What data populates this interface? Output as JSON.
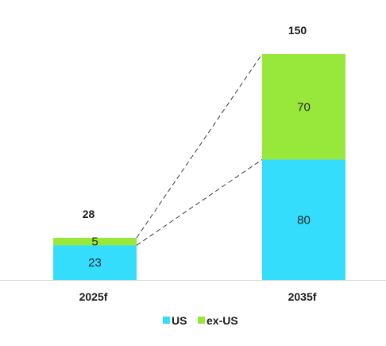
{
  "chart_data": {
    "type": "bar",
    "stacked": true,
    "categories": [
      "2025f",
      "2035f"
    ],
    "series": [
      {
        "name": "US",
        "values": [
          23,
          80
        ],
        "color": "#33ddfb"
      },
      {
        "name": "ex-US",
        "values": [
          5,
          70
        ],
        "color": "#98e83b"
      }
    ],
    "totals": [
      "28",
      "150"
    ],
    "segment_labels": [
      [
        "23",
        "80"
      ],
      [
        "5",
        "70"
      ]
    ],
    "connector_lines": "dashed",
    "legend_position": "bottom",
    "grid": false
  }
}
